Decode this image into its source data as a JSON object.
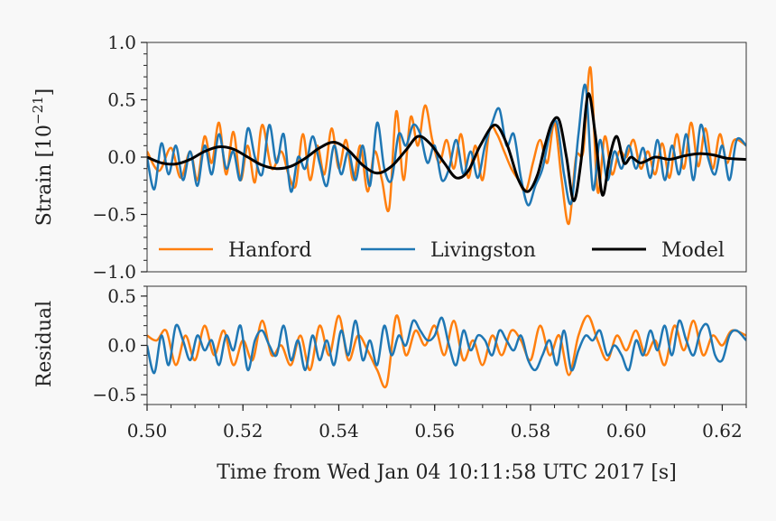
{
  "chart_data": {
    "type": "line",
    "xlabel": "Time from Wed Jan 04 10:11:58 UTC 2017 [s]",
    "xlim": [
      0.5,
      0.625
    ],
    "xticks": [
      0.5,
      0.52,
      0.54,
      0.56,
      0.58,
      0.6,
      0.62
    ],
    "xtick_labels": [
      "0.50",
      "0.52",
      "0.54",
      "0.56",
      "0.58",
      "0.60",
      "0.62"
    ],
    "colors": {
      "hanford": "#ff7f0e",
      "livingston": "#1f77b4",
      "model": "#000000"
    },
    "panels": [
      {
        "name": "strain",
        "ylabel": "Strain [10",
        "ylabel_sup": "−21",
        "ylabel_end": "]",
        "ylim": [
          -1.0,
          1.0
        ],
        "yticks": [
          -1.0,
          -0.5,
          0.0,
          0.5,
          1.0
        ],
        "ytick_labels": [
          "−1.0",
          "−0.5",
          "0.0",
          "0.5",
          "1.0"
        ],
        "legend": {
          "position": "lower-center",
          "entries": [
            "Hanford",
            "Livingston",
            "Model"
          ]
        },
        "series": [
          {
            "name": "Hanford",
            "color": "#ff7f0e",
            "x": [
              0.5,
              0.5025,
              0.505,
              0.507,
              0.509,
              0.5105,
              0.512,
              0.5135,
              0.515,
              0.5165,
              0.518,
              0.5195,
              0.521,
              0.5225,
              0.524,
              0.526,
              0.528,
              0.5295,
              0.531,
              0.5325,
              0.534,
              0.5355,
              0.537,
              0.5385,
              0.54,
              0.5415,
              0.543,
              0.5445,
              0.546,
              0.5475,
              0.549,
              0.5505,
              0.552,
              0.5535,
              0.555,
              0.5565,
              0.558,
              0.5595,
              0.561,
              0.5625,
              0.564,
              0.5655,
              0.567,
              0.5685,
              0.57,
              0.5715,
              0.573,
              0.5745,
              0.576,
              0.5775,
              0.579,
              0.5805,
              0.582,
              0.5835,
              0.585,
              0.5865,
              0.588,
              0.5895,
              0.591,
              0.5925,
              0.594,
              0.5955,
              0.597,
              0.5985,
              0.6,
              0.6015,
              0.603,
              0.6045,
              0.606,
              0.6075,
              0.609,
              0.6105,
              0.612,
              0.6135,
              0.615,
              0.6165,
              0.618,
              0.6195,
              0.621,
              0.6225,
              0.625
            ],
            "y": [
              0.05,
              -0.12,
              0.08,
              -0.18,
              0.05,
              -0.2,
              0.18,
              -0.05,
              0.3,
              -0.15,
              0.22,
              -0.2,
              0.1,
              -0.22,
              0.28,
              -0.1,
              0.05,
              -0.15,
              -0.25,
              0.2,
              -0.2,
              0.1,
              -0.15,
              0.25,
              -0.1,
              0.15,
              -0.2,
              0.1,
              -0.3,
              0.05,
              -0.2,
              -0.45,
              0.4,
              -0.2,
              0.35,
              0.1,
              0.45,
              0.15,
              -0.05,
              0.15,
              -0.1,
              0.2,
              -0.18,
              0.1,
              -0.2,
              0.25,
              0.2,
              0.05,
              -0.1,
              -0.2,
              -0.3,
              -0.05,
              0.15,
              -0.05,
              0.3,
              -0.2,
              -0.58,
              0.0,
              0.05,
              0.78,
              -0.3,
              0.18,
              -0.15,
              0.05,
              0.0,
              0.15,
              -0.1,
              0.05,
              -0.15,
              0.12,
              -0.18,
              0.2,
              -0.1,
              0.3,
              -0.08,
              0.25,
              -0.1,
              0.2,
              -0.05,
              0.15,
              0.1
            ]
          },
          {
            "name": "Livingston",
            "color": "#1f77b4",
            "x": [
              0.5,
              0.5015,
              0.503,
              0.5045,
              0.506,
              0.5075,
              0.509,
              0.5105,
              0.512,
              0.5135,
              0.515,
              0.5165,
              0.518,
              0.5195,
              0.521,
              0.5225,
              0.524,
              0.5255,
              0.527,
              0.5285,
              0.53,
              0.5315,
              0.533,
              0.5345,
              0.536,
              0.5375,
              0.539,
              0.5405,
              0.542,
              0.5435,
              0.545,
              0.5465,
              0.548,
              0.5495,
              0.551,
              0.5525,
              0.554,
              0.5555,
              0.557,
              0.5585,
              0.56,
              0.5615,
              0.563,
              0.5645,
              0.566,
              0.5675,
              0.569,
              0.5705,
              0.572,
              0.5735,
              0.575,
              0.5765,
              0.578,
              0.5795,
              0.581,
              0.5825,
              0.584,
              0.5855,
              0.587,
              0.5885,
              0.59,
              0.5915,
              0.593,
              0.5945,
              0.596,
              0.5975,
              0.599,
              0.6005,
              0.602,
              0.6035,
              0.605,
              0.6065,
              0.608,
              0.6095,
              0.611,
              0.6125,
              0.614,
              0.6155,
              0.617,
              0.6185,
              0.62,
              0.6215,
              0.623,
              0.625
            ],
            "y": [
              0.0,
              -0.28,
              0.12,
              -0.15,
              0.1,
              -0.2,
              0.05,
              -0.25,
              0.1,
              -0.15,
              0.2,
              -0.1,
              0.05,
              -0.2,
              0.25,
              0.0,
              -0.15,
              0.28,
              -0.05,
              0.2,
              -0.3,
              0.0,
              -0.1,
              0.18,
              -0.05,
              -0.25,
              0.1,
              -0.15,
              0.05,
              -0.2,
              0.1,
              -0.25,
              0.3,
              -0.1,
              -0.2,
              0.2,
              0.1,
              0.28,
              0.2,
              -0.05,
              0.1,
              -0.2,
              -0.1,
              0.15,
              -0.15,
              0.05,
              -0.18,
              0.1,
              0.3,
              0.42,
              0.1,
              0.2,
              -0.18,
              -0.42,
              -0.25,
              -0.1,
              0.2,
              0.3,
              -0.15,
              -0.4,
              0.2,
              0.62,
              -0.28,
              0.15,
              -0.2,
              0.05,
              -0.1,
              0.1,
              -0.1,
              0.08,
              -0.18,
              0.15,
              -0.2,
              0.1,
              -0.15,
              0.2,
              -0.2,
              0.28,
              0.0,
              -0.15,
              0.1,
              -0.2,
              0.15,
              0.1
            ]
          },
          {
            "name": "Model",
            "color": "#000000",
            "x": [
              0.5,
              0.503,
              0.506,
              0.509,
              0.512,
              0.515,
              0.518,
              0.521,
              0.524,
              0.527,
              0.53,
              0.533,
              0.536,
              0.539,
              0.542,
              0.545,
              0.548,
              0.551,
              0.554,
              0.5565,
              0.559,
              0.562,
              0.5645,
              0.567,
              0.5695,
              0.5725,
              0.575,
              0.5775,
              0.5795,
              0.5815,
              0.583,
              0.5845,
              0.586,
              0.5875,
              0.589,
              0.5905,
              0.592,
              0.5935,
              0.595,
              0.5965,
              0.598,
              0.5995,
              0.601,
              0.603,
              0.606,
              0.609,
              0.612,
              0.615,
              0.618,
              0.621,
              0.625
            ],
            "y": [
              0.0,
              -0.05,
              -0.06,
              -0.02,
              0.05,
              0.09,
              0.07,
              0.0,
              -0.07,
              -0.1,
              -0.08,
              -0.01,
              0.08,
              0.13,
              0.06,
              -0.07,
              -0.14,
              -0.08,
              0.06,
              0.18,
              0.12,
              -0.05,
              -0.18,
              -0.12,
              0.1,
              0.28,
              0.12,
              -0.2,
              -0.3,
              -0.15,
              0.1,
              0.3,
              0.32,
              0.0,
              -0.38,
              -0.05,
              0.55,
              0.2,
              -0.33,
              0.0,
              0.18,
              -0.05,
              0.0,
              -0.05,
              0.0,
              -0.02,
              0.01,
              0.03,
              0.02,
              -0.01,
              -0.02
            ]
          }
        ]
      },
      {
        "name": "residual",
        "ylabel": "Residual",
        "ylim": [
          -0.6,
          0.6
        ],
        "yticks": [
          -0.5,
          0.0,
          0.5
        ],
        "ytick_labels": [
          "−0.5",
          "0.0",
          "0.5"
        ],
        "series": [
          {
            "name": "Hanford",
            "color": "#ff7f0e",
            "x": [
              0.5,
              0.502,
              0.504,
              0.506,
              0.508,
              0.51,
              0.512,
              0.514,
              0.516,
              0.518,
              0.52,
              0.522,
              0.524,
              0.526,
              0.528,
              0.53,
              0.532,
              0.534,
              0.536,
              0.538,
              0.54,
              0.542,
              0.544,
              0.546,
              0.548,
              0.55,
              0.552,
              0.554,
              0.556,
              0.558,
              0.56,
              0.562,
              0.564,
              0.566,
              0.568,
              0.57,
              0.572,
              0.574,
              0.576,
              0.578,
              0.58,
              0.582,
              0.584,
              0.586,
              0.588,
              0.59,
              0.592,
              0.594,
              0.596,
              0.598,
              0.6,
              0.602,
              0.604,
              0.606,
              0.608,
              0.61,
              0.612,
              0.614,
              0.616,
              0.618,
              0.62,
              0.622,
              0.625
            ],
            "y": [
              0.1,
              0.05,
              0.15,
              -0.2,
              0.1,
              -0.15,
              0.2,
              -0.1,
              0.15,
              -0.2,
              0.05,
              -0.15,
              0.25,
              -0.1,
              0.0,
              -0.2,
              0.1,
              -0.25,
              0.2,
              -0.1,
              0.3,
              -0.15,
              0.1,
              -0.05,
              -0.25,
              -0.4,
              0.3,
              -0.1,
              0.15,
              0.0,
              0.2,
              -0.1,
              0.25,
              -0.15,
              0.05,
              -0.2,
              0.1,
              -0.1,
              0.15,
              0.05,
              -0.15,
              0.2,
              -0.1,
              0.1,
              -0.3,
              0.1,
              0.3,
              0.05,
              -0.15,
              0.1,
              -0.05,
              0.15,
              -0.1,
              0.05,
              -0.2,
              0.2,
              -0.05,
              0.25,
              -0.1,
              0.1,
              0.0,
              0.15,
              0.1
            ]
          },
          {
            "name": "Livingston",
            "color": "#1f77b4",
            "x": [
              0.5,
              0.5015,
              0.503,
              0.5045,
              0.506,
              0.5075,
              0.509,
              0.5105,
              0.512,
              0.5135,
              0.515,
              0.5165,
              0.518,
              0.5195,
              0.521,
              0.5225,
              0.524,
              0.5255,
              0.527,
              0.5285,
              0.53,
              0.5315,
              0.533,
              0.5345,
              0.536,
              0.5375,
              0.539,
              0.5405,
              0.542,
              0.5435,
              0.545,
              0.5465,
              0.548,
              0.5495,
              0.551,
              0.5525,
              0.554,
              0.5555,
              0.557,
              0.5585,
              0.56,
              0.5615,
              0.563,
              0.5645,
              0.566,
              0.5675,
              0.569,
              0.5705,
              0.572,
              0.5735,
              0.575,
              0.5765,
              0.578,
              0.5795,
              0.581,
              0.5825,
              0.584,
              0.5855,
              0.587,
              0.5885,
              0.59,
              0.5915,
              0.593,
              0.5945,
              0.596,
              0.5975,
              0.599,
              0.6005,
              0.602,
              0.6035,
              0.605,
              0.6065,
              0.608,
              0.6095,
              0.611,
              0.6125,
              0.614,
              0.6155,
              0.617,
              0.6185,
              0.62,
              0.6215,
              0.623,
              0.625
            ],
            "y": [
              0.0,
              -0.28,
              0.1,
              -0.2,
              0.2,
              0.05,
              -0.15,
              0.1,
              -0.05,
              0.05,
              -0.2,
              0.1,
              -0.05,
              0.2,
              -0.25,
              0.05,
              0.15,
              0.0,
              -0.1,
              0.2,
              -0.15,
              0.05,
              -0.25,
              0.1,
              -0.15,
              0.05,
              -0.2,
              0.15,
              -0.1,
              0.25,
              -0.15,
              0.05,
              -0.2,
              0.2,
              -0.1,
              0.1,
              0.0,
              0.25,
              0.15,
              0.05,
              0.1,
              0.28,
              0.0,
              -0.2,
              0.15,
              -0.05,
              0.1,
              0.05,
              -0.1,
              0.15,
              0.05,
              -0.05,
              0.1,
              -0.15,
              -0.25,
              -0.1,
              0.05,
              -0.2,
              0.15,
              -0.25,
              -0.05,
              0.1,
              0.05,
              0.15,
              -0.1,
              0.0,
              -0.1,
              -0.25,
              0.05,
              -0.1,
              0.15,
              -0.05,
              0.2,
              -0.1,
              0.25,
              0.05,
              -0.1,
              0.15,
              0.2,
              -0.1,
              -0.15,
              0.1,
              0.15,
              0.05
            ]
          }
        ]
      }
    ]
  }
}
